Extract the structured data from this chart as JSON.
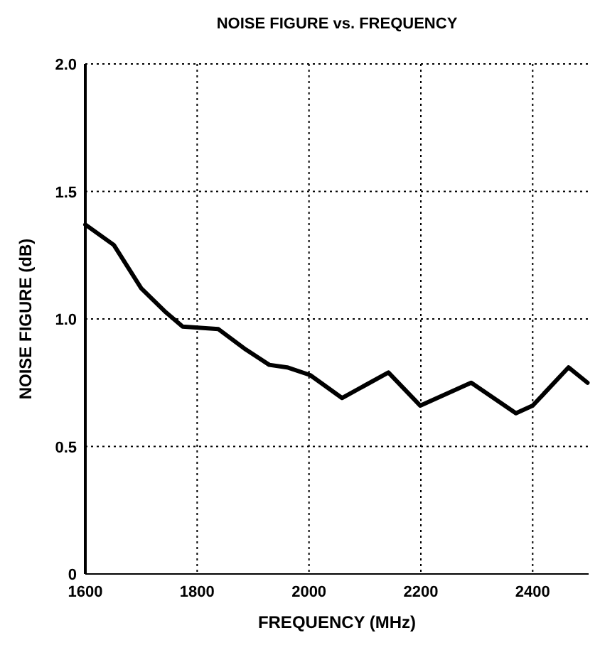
{
  "chart_data": {
    "type": "line",
    "title": "NOISE FIGURE vs. FREQUENCY",
    "xlabel": "FREQUENCY (MHz)",
    "ylabel": "NOISE FIGURE (dB)",
    "x": [
      1600,
      1651,
      1700,
      1742,
      1774,
      1838,
      1887,
      1929,
      1961,
      2002,
      2059,
      2142,
      2199,
      2290,
      2370,
      2400,
      2464,
      2498
    ],
    "series": [
      {
        "color": "#000000",
        "values": [
          1.37,
          1.29,
          1.12,
          1.03,
          0.97,
          0.96,
          0.88,
          0.82,
          0.81,
          0.78,
          0.69,
          0.79,
          0.66,
          0.75,
          0.63,
          0.66,
          0.81,
          0.75
        ]
      }
    ],
    "xlim": [
      1600,
      2500
    ],
    "xticks": [
      1600,
      1800,
      2000,
      2200,
      2400
    ],
    "ylim": [
      0,
      2
    ],
    "yticks": [
      0,
      0.5,
      {
        "value": 1,
        "label": "1.0"
      },
      1.5,
      {
        "value": 2,
        "label": "2.0"
      }
    ],
    "grid": true,
    "line_style": "solid",
    "marker": "none"
  }
}
